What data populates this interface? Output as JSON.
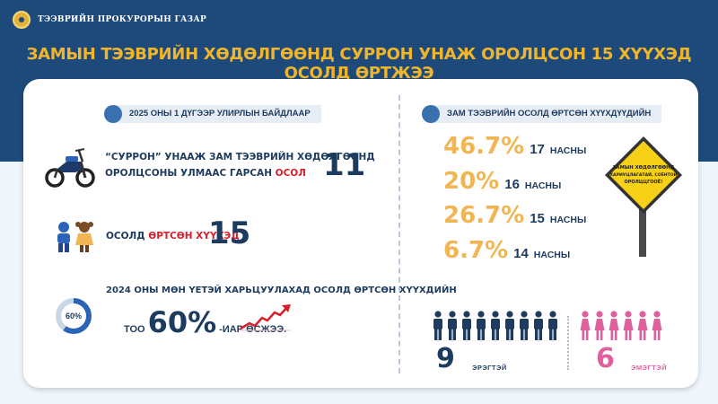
{
  "header": {
    "org_name": "ТЭЭВРИЙН ПРОКУРОРЫН ГАЗАР",
    "headline": "ЗАМЫН ТЭЭВРИЙН ХӨДӨЛГӨӨНД СУРРОН УНАЖ ОРОЛЦСОН 15 ХҮҮХЭД ОСОЛД ӨРТЖЭЭ"
  },
  "left": {
    "section_title": "2025 ОНЫ 1 ДҮГЭЭР УЛИРЛЫН БАЙДЛААР",
    "accidents": {
      "line1": "“СУРРОН” УНААЖ ЗАМ ТЭЭВРИЙН ХӨДӨЛГӨӨНД",
      "line2_prefix": "ОРОЛЦСОНЫ УЛМААС ГАРСАН ",
      "line2_highlight": "ОСОЛ",
      "value": "11"
    },
    "children": {
      "label_prefix": "ОСОЛД ",
      "label_highlight": "ӨРТСӨН ХҮҮХЭД",
      "value": "15"
    },
    "comparison": {
      "line1": "2024 ОНЫ МӨН ҮЕТЭЙ ХАРЬЦУУЛАХАД ОСОЛД ӨРТСӨН ХҮҮХДИЙН",
      "prefix": "ТОО",
      "value": "60%",
      "suffix": "-ИАР ӨСЖЭЭ.",
      "donut_label": "60%",
      "donut_fraction": 0.6
    }
  },
  "right": {
    "section_title": "ЗАМ ТЭЭВРИЙН ОСОЛД ӨРТСӨН ХҮҮХДҮҮДИЙН",
    "ages": [
      {
        "percent": "46.7%",
        "age": "17",
        "unit": "НАСНЫ"
      },
      {
        "percent": "20%",
        "age": "16",
        "unit": "НАСНЫ"
      },
      {
        "percent": "26.7%",
        "age": "15",
        "unit": "НАСНЫ"
      },
      {
        "percent": "6.7%",
        "age": "14",
        "unit": "НАСНЫ"
      }
    ],
    "sign": {
      "line1": "ЗАМЫН ХӨДӨЛГӨӨНД",
      "line2": "ХАРИУЦЛАГАТАЙ, СОЁНТОЙ",
      "line3": "ОРОЛЦЦГООЁ!"
    },
    "gender": {
      "male_count": "9",
      "male_label": "ЭРЭГТЭЙ",
      "female_count": "6",
      "female_label": "ЭМЭГТЭЙ"
    }
  },
  "colors": {
    "navy": "#1d4a7a",
    "dark_text": "#1d3b5e",
    "orange": "#f2b553",
    "headline_gold": "#f0b52a",
    "red": "#d81e2a",
    "pink": "#e0609e",
    "male_blue": "#1d3b5e"
  },
  "icons": [
    "emblem-icon",
    "motorbike-icon",
    "children-icon",
    "donut-chart-icon",
    "trend-arrow-icon",
    "road-sign-icon",
    "male-person-icon",
    "female-person-icon"
  ]
}
